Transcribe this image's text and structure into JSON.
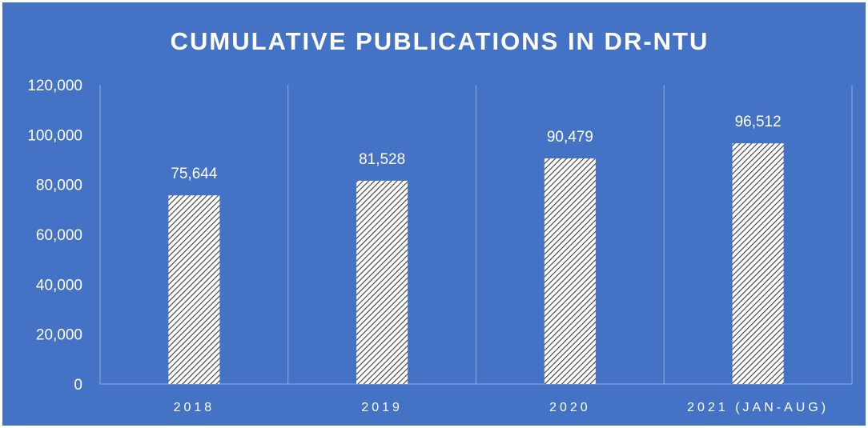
{
  "chart_data": {
    "type": "bar",
    "title": "CUMULATIVE PUBLICATIONS IN DR-NTU",
    "categories": [
      "2018",
      "2019",
      "2020",
      "2021 (JAN-AUG)"
    ],
    "values": [
      75644,
      81528,
      90479,
      96512
    ],
    "data_labels": [
      "75,644",
      "81,528",
      "90,479",
      "96,512"
    ],
    "y_ticks": [
      0,
      20000,
      40000,
      60000,
      80000,
      100000,
      120000
    ],
    "y_tick_labels": [
      "0",
      "20,000",
      "40,000",
      "60,000",
      "80,000",
      "100,000",
      "120,000"
    ],
    "ylim": [
      0,
      120000
    ],
    "grid": "vertical category separators",
    "legend": "none",
    "colors": {
      "background": "#4472C4",
      "border": "#ffffff",
      "bar_fill": "#ffffff",
      "bar_hatch": "#3a3a3a",
      "gridline": "#8FAADC",
      "text": "#ffffff"
    }
  }
}
